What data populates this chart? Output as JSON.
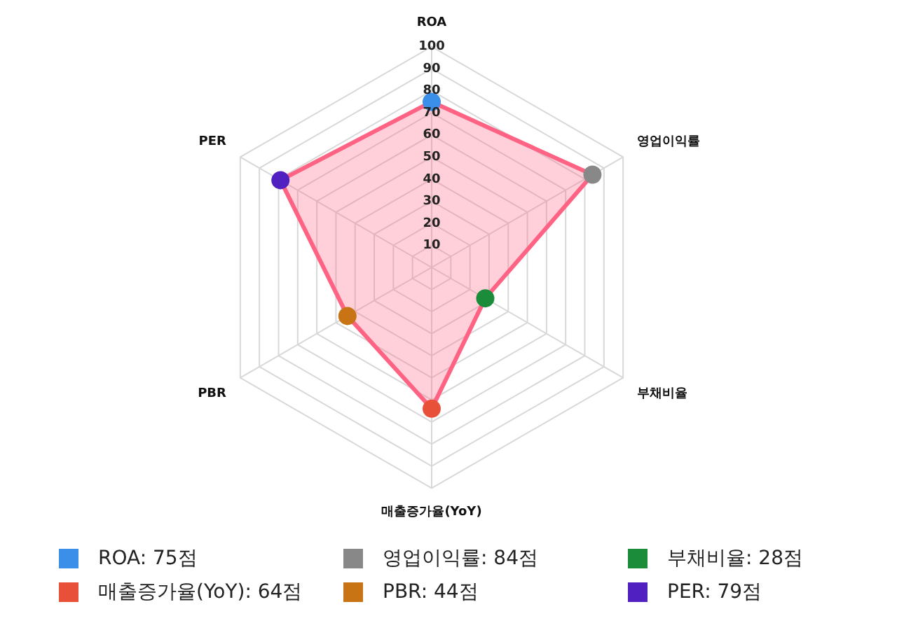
{
  "chart_data": {
    "type": "radar",
    "categories": [
      "ROA",
      "영업이익률",
      "부채비율",
      "매출증가율(YoY)",
      "PBR",
      "PER"
    ],
    "series": [
      {
        "color": "#ff6384",
        "values": [
          75,
          84,
          28,
          64,
          44,
          79
        ],
        "colors": [
          "#3b8fe8",
          "#888888",
          "#1a8c3a",
          "#e8503a",
          "#c87415",
          "#5020c0"
        ]
      }
    ],
    "annotations": [
      "ROA: 75점",
      "영업이익률: 84점",
      "부채비율: 28점",
      "매출증가율(YoY): 64점",
      "PBR: 44점",
      "PER: 79점"
    ],
    "ylim": [
      0,
      100
    ],
    "yticks": [
      10,
      20,
      30,
      40,
      50,
      60,
      70,
      80,
      90,
      100
    ],
    "grid": true,
    "marker": "circle"
  }
}
